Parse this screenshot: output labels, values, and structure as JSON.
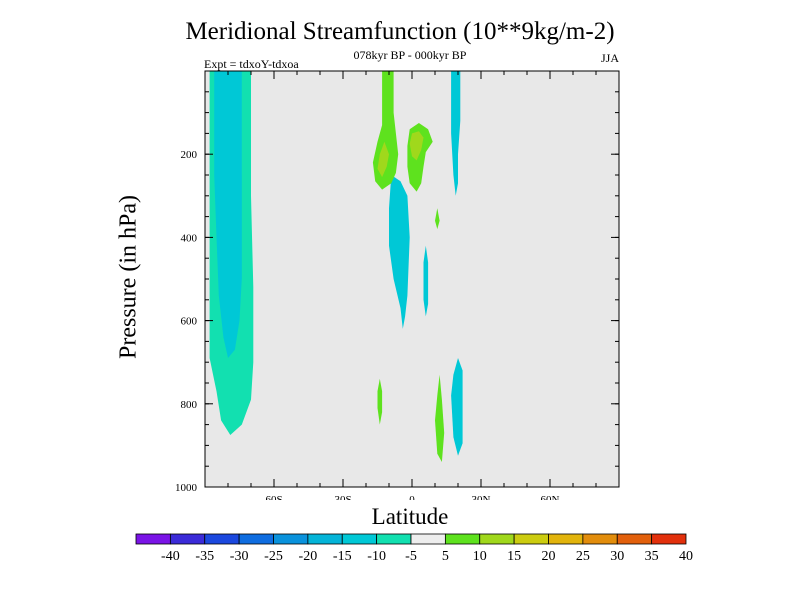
{
  "chart_data": {
    "type": "contour",
    "title": "Meridional Streamfunction (10**9kg/m-2)",
    "subtitle_left": "Expt = tdxoY-tdxoa",
    "subtitle_center": "078kyr BP - 000kyr BP",
    "subtitle_right": "JJA",
    "xlabel": "Latitude",
    "ylabel": "Pressure (in hPa)",
    "xlim": [
      -90,
      90
    ],
    "ylim": [
      1000,
      0
    ],
    "x_ticks": [
      {
        "value": -60,
        "label": "60S"
      },
      {
        "value": -30,
        "label": "30S"
      },
      {
        "value": 0,
        "label": "0"
      },
      {
        "value": 30,
        "label": "30N"
      },
      {
        "value": 60,
        "label": "60N"
      }
    ],
    "y_ticks": [
      {
        "value": 200,
        "label": "200"
      },
      {
        "value": 400,
        "label": "400"
      },
      {
        "value": 600,
        "label": "600"
      },
      {
        "value": 800,
        "label": "800"
      },
      {
        "value": 1000,
        "label": "1000"
      }
    ],
    "background_color": "#e8e8e8",
    "contour_regions": [
      {
        "level": "-10 to -5",
        "color": "#12e0b0",
        "points": [
          [
            -88,
            0
          ],
          [
            -70,
            0
          ],
          [
            -70,
            300
          ],
          [
            -69,
            520
          ],
          [
            -69,
            700
          ],
          [
            -70,
            790
          ],
          [
            -74,
            850
          ],
          [
            -79,
            875
          ],
          [
            -83,
            840
          ],
          [
            -85,
            770
          ],
          [
            -88,
            690
          ]
        ]
      },
      {
        "level": "-15 to -10",
        "color": "#00c8d6",
        "points": [
          [
            -86,
            0
          ],
          [
            -74,
            0
          ],
          [
            -74,
            200
          ],
          [
            -74,
            500
          ],
          [
            -75,
            600
          ],
          [
            -77,
            670
          ],
          [
            -80,
            690
          ],
          [
            -82,
            640
          ],
          [
            -84,
            540
          ],
          [
            -85,
            400
          ],
          [
            -86,
            250
          ]
        ]
      },
      {
        "level": "-15 to -10",
        "color": "#00c8d6",
        "points": [
          [
            -9,
            250
          ],
          [
            -5,
            265
          ],
          [
            -2,
            300
          ],
          [
            -1,
            400
          ],
          [
            -2,
            540
          ],
          [
            -3,
            590
          ],
          [
            -4,
            620
          ],
          [
            -5,
            570
          ],
          [
            -8,
            500
          ],
          [
            -10,
            420
          ],
          [
            -10,
            330
          ]
        ]
      },
      {
        "level": "-15 to -10",
        "color": "#00c8d6",
        "points": [
          [
            17,
            0
          ],
          [
            21,
            0
          ],
          [
            21,
            120
          ],
          [
            20,
            200
          ],
          [
            20,
            270
          ],
          [
            19,
            300
          ],
          [
            18,
            250
          ],
          [
            17,
            150
          ]
        ]
      },
      {
        "level": "-15 to -10",
        "color": "#00c8d6",
        "points": [
          [
            6,
            420
          ],
          [
            7,
            460
          ],
          [
            7,
            560
          ],
          [
            6,
            590
          ],
          [
            5,
            550
          ],
          [
            5,
            460
          ]
        ]
      },
      {
        "level": "-15 to -10",
        "color": "#00c8d6",
        "points": [
          [
            20,
            690
          ],
          [
            22,
            720
          ],
          [
            22,
            830
          ],
          [
            22,
            895
          ],
          [
            20,
            925
          ],
          [
            18,
            880
          ],
          [
            17,
            780
          ],
          [
            18,
            730
          ]
        ]
      },
      {
        "level": "5 to 10",
        "color": "#5ee21e",
        "points": [
          [
            -13,
            0
          ],
          [
            -8,
            0
          ],
          [
            -8,
            100
          ],
          [
            -7,
            150
          ],
          [
            -6,
            200
          ],
          [
            -7,
            245
          ],
          [
            -9,
            270
          ],
          [
            -13,
            285
          ],
          [
            -16,
            265
          ],
          [
            -17,
            220
          ],
          [
            -15,
            170
          ],
          [
            -13,
            130
          ]
        ]
      },
      {
        "level": "5 to 10",
        "color": "#5ee21e",
        "points": [
          [
            -2,
            180
          ],
          [
            -1,
            140
          ],
          [
            3,
            125
          ],
          [
            7,
            140
          ],
          [
            9,
            170
          ],
          [
            6,
            195
          ],
          [
            5,
            230
          ],
          [
            4,
            270
          ],
          [
            2,
            290
          ],
          [
            -1,
            270
          ],
          [
            -2,
            230
          ]
        ]
      },
      {
        "level": "5 to 10",
        "color": "#5ee21e",
        "points": [
          [
            11,
            330
          ],
          [
            12,
            360
          ],
          [
            11,
            380
          ],
          [
            10,
            360
          ]
        ]
      },
      {
        "level": "5 to 10",
        "color": "#5ee21e",
        "points": [
          [
            -14,
            740
          ],
          [
            -13,
            770
          ],
          [
            -13,
            820
          ],
          [
            -14,
            850
          ],
          [
            -15,
            810
          ],
          [
            -15,
            770
          ]
        ]
      },
      {
        "level": "5 to 10",
        "color": "#5ee21e",
        "points": [
          [
            12,
            730
          ],
          [
            13,
            790
          ],
          [
            14,
            870
          ],
          [
            13,
            940
          ],
          [
            11,
            920
          ],
          [
            10,
            840
          ],
          [
            11,
            780
          ]
        ]
      },
      {
        "level": "10 to 15",
        "color": "#a0d81c",
        "points": [
          [
            -12,
            170
          ],
          [
            -10,
            200
          ],
          [
            -11,
            230
          ],
          [
            -13,
            255
          ],
          [
            -15,
            235
          ],
          [
            -14,
            200
          ]
        ]
      },
      {
        "level": "10 to 15",
        "color": "#a0d81c",
        "points": [
          [
            0,
            150
          ],
          [
            3,
            145
          ],
          [
            5,
            160
          ],
          [
            4,
            190
          ],
          [
            2,
            215
          ],
          [
            0,
            205
          ],
          [
            -1,
            175
          ]
        ]
      }
    ],
    "colorbar": {
      "labels": [
        "-40",
        "-35",
        "-30",
        "-25",
        "-20",
        "-15",
        "-10",
        "-5",
        "5",
        "10",
        "15",
        "20",
        "25",
        "30",
        "35",
        "40"
      ],
      "colors": [
        "#7a14e6",
        "#3b2bd8",
        "#1b48de",
        "#0f6de0",
        "#0a92dc",
        "#04b4d8",
        "#00c8d6",
        "#12e0b0",
        "#eeeeee",
        "#5ee21e",
        "#a0d81c",
        "#cccc10",
        "#e2b40c",
        "#e28d0c",
        "#e2600c",
        "#e2300c"
      ]
    }
  }
}
